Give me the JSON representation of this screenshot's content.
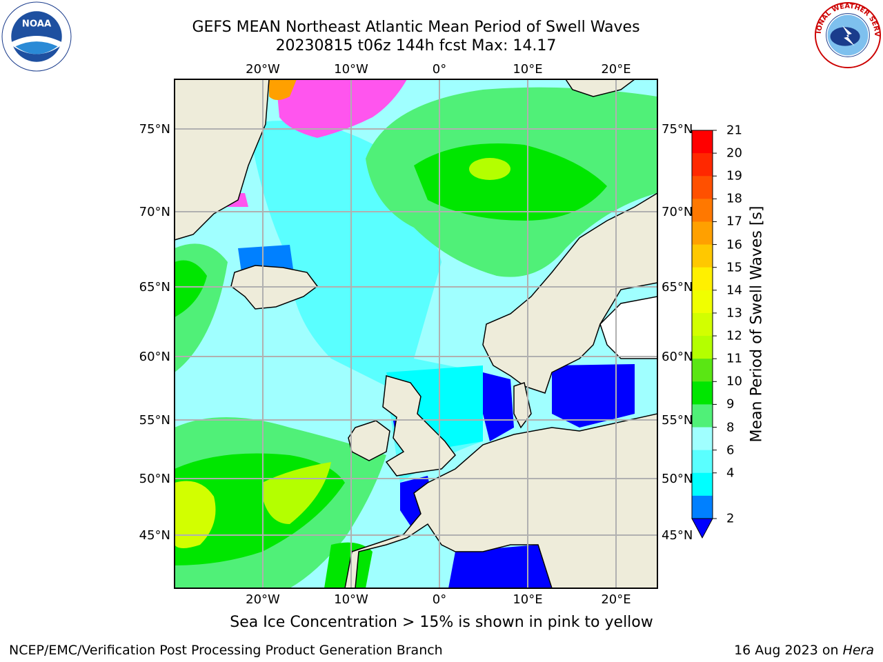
{
  "title": {
    "line1": "GEFS MEAN Northeast Atlantic Mean Period of Swell Waves",
    "line2": "20230815 t06z 144h fcst   Max: 14.17"
  },
  "map": {
    "lon_labels_top": [
      "20°W",
      "10°W",
      "0°",
      "10°E",
      "20°E"
    ],
    "lon_labels_bottom": [
      "20°W",
      "10°W",
      "0°",
      "10°E",
      "20°E"
    ],
    "lat_labels_left": [
      "75°N",
      "70°N",
      "65°N",
      "60°N",
      "55°N",
      "50°N",
      "45°N"
    ],
    "lat_labels_right": [
      "75°N",
      "70°N",
      "65°N",
      "60°N",
      "55°N",
      "50°N",
      "45°N"
    ],
    "land_color": "#eeecda",
    "grid_color": "#b0b0b0"
  },
  "colorbar": {
    "label": "Mean Period of Swell Waves [s]",
    "ticks": [
      "21",
      "20",
      "19",
      "18",
      "17",
      "16",
      "15",
      "14",
      "13",
      "12",
      "11",
      "10",
      "9",
      "8",
      "6",
      "4",
      "2"
    ],
    "colors_top_to_bottom": [
      "#ff0000",
      "#ff2800",
      "#ff5000",
      "#ff7800",
      "#ffa000",
      "#ffc800",
      "#fff000",
      "#f0ff00",
      "#d2ff00",
      "#b4ff00",
      "#5ae614",
      "#00e600",
      "#50f078",
      "#a0ffff",
      "#5affff",
      "#00ffff",
      "#0080ff"
    ],
    "extend_color": "#0000ff"
  },
  "note": "Sea Ice Concentration > 15% is shown in pink to yellow",
  "footer": {
    "left": "NCEP/EMC/Verification Post Processing Product Generation Branch",
    "date": "16 Aug 2023 on ",
    "host": "Hera"
  },
  "logos": {
    "noaa": "NOAA",
    "nws": "NATIONAL WEATHER SERVICE"
  }
}
